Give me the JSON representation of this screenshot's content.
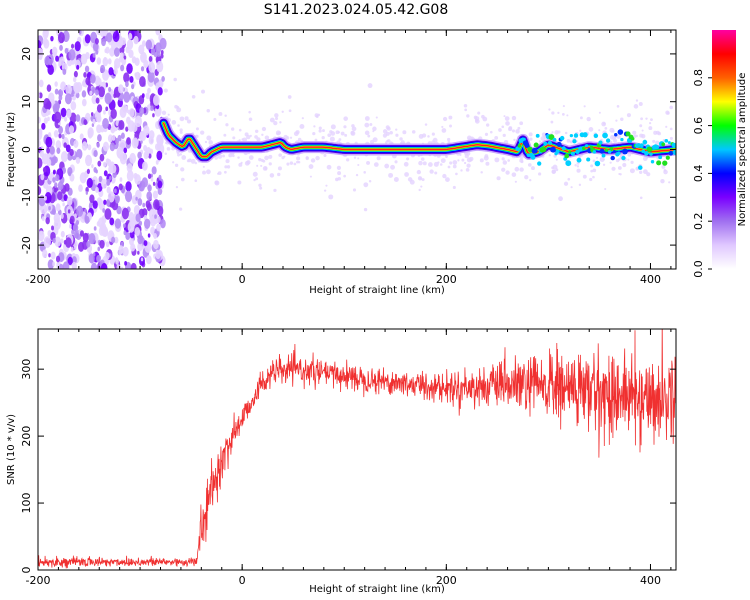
{
  "title": "S141.2023.024.05.42.G08",
  "chart_data": [
    {
      "type": "heatmap",
      "xlabel": "Height of straight line (km)",
      "ylabel": "Frequency (Hz)",
      "xlim": [
        -200,
        425
      ],
      "ylim": [
        -25,
        25
      ],
      "xticks": [
        -200,
        0,
        200,
        400
      ],
      "yticks": [
        -20,
        -10,
        0,
        10,
        20
      ],
      "colorbar": {
        "label": "Normalized spectral amplitude",
        "range": [
          0,
          1
        ],
        "ticks": [
          0.0,
          0.2,
          0.4,
          0.6,
          0.8
        ],
        "colors": [
          "#ffffff",
          "#e0c8ff",
          "#a070f0",
          "#7a00ff",
          "#0000ff",
          "#00c8ff",
          "#00ff00",
          "#ffff00",
          "#ff6000",
          "#ff0000",
          "#ff00a0"
        ]
      },
      "noise_region_x": [
        -200,
        -77
      ],
      "ridge": {
        "x": [
          -77,
          -72,
          -65,
          -58,
          -52,
          -46,
          -40,
          -35,
          -30,
          -20,
          0,
          20,
          38,
          42,
          48,
          60,
          80,
          100,
          150,
          200,
          230,
          240,
          260,
          270,
          275,
          280,
          290,
          300,
          320,
          340,
          360,
          380,
          400,
          425
        ],
        "freq": [
          5.5,
          3.0,
          1.5,
          0.5,
          2.5,
          0.5,
          -1.5,
          -1.5,
          -0.5,
          0.5,
          0.5,
          0.5,
          1.5,
          0.5,
          0,
          0.5,
          0.5,
          0,
          0,
          0,
          1.0,
          0.8,
          0,
          -0.5,
          2.0,
          -1.0,
          -0.5,
          1.0,
          -0.5,
          0.5,
          0,
          0.5,
          -0.5,
          0
        ]
      }
    },
    {
      "type": "line",
      "xlabel": "Height of straight line (km)",
      "ylabel": "SNR (10 * v/v)",
      "xlim": [
        -200,
        425
      ],
      "ylim": [
        0,
        360
      ],
      "xticks": [
        -200,
        0,
        200,
        400
      ],
      "yticks": [
        0,
        100,
        200,
        300
      ],
      "color": "#f03030",
      "series": [
        {
          "x": [
            -200,
            -100,
            -45,
            -40,
            -30,
            -20,
            -10,
            0,
            10,
            20,
            30,
            50,
            100,
            150,
            200,
            250,
            300,
            350,
            400,
            425
          ],
          "y_mean": [
            12,
            12,
            12,
            60,
            120,
            160,
            200,
            225,
            255,
            280,
            295,
            300,
            290,
            280,
            272,
            275,
            275,
            265,
            255,
            260
          ],
          "y_spread": [
            8,
            8,
            8,
            40,
            35,
            35,
            30,
            25,
            20,
            20,
            22,
            22,
            22,
            22,
            25,
            35,
            60,
            70,
            70,
            70
          ]
        }
      ]
    }
  ]
}
